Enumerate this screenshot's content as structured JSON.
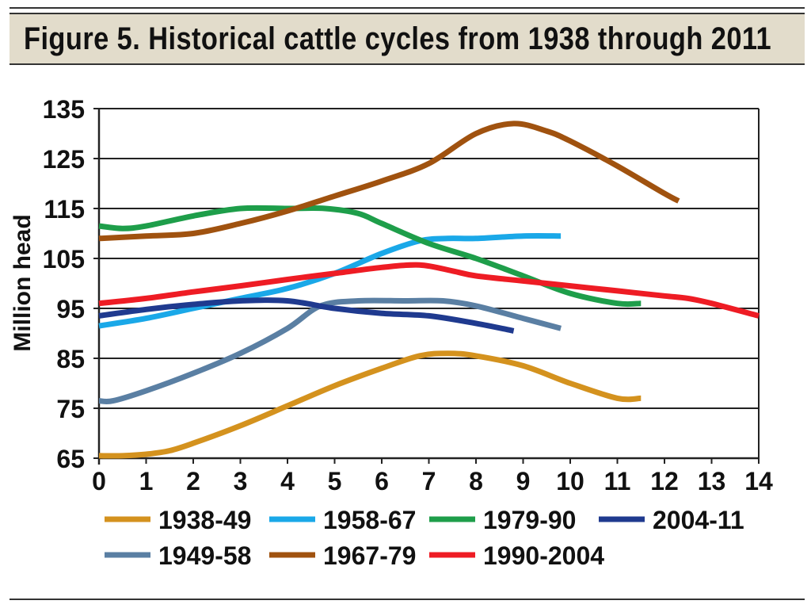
{
  "chart_data": {
    "type": "line",
    "title": "Figure 5. Historical cattle cycles from 1938 through 2011",
    "xlabel": "",
    "ylabel": "Million head",
    "xlim": [
      0,
      14
    ],
    "ylim": [
      65,
      135
    ],
    "xticks": [
      0,
      1,
      2,
      3,
      4,
      5,
      6,
      7,
      8,
      9,
      10,
      11,
      12,
      13,
      14
    ],
    "yticks": [
      65,
      75,
      85,
      95,
      105,
      115,
      125,
      135
    ],
    "grid": "horizontal",
    "legend_position": "bottom",
    "series": [
      {
        "name": "1938-49",
        "color": "#d4921e",
        "x": [
          0,
          0.5,
          1,
          1.5,
          2,
          3,
          4,
          5,
          6,
          6.8,
          7.4,
          8,
          9,
          10,
          11,
          11.5
        ],
        "y": [
          65.5,
          65.5,
          65.8,
          66.5,
          68,
          71.5,
          75.5,
          79.5,
          83,
          85.5,
          86,
          85.5,
          83.5,
          80,
          77,
          77
        ]
      },
      {
        "name": "1949-58",
        "color": "#5a7fa3",
        "x": [
          0,
          0.3,
          1,
          2,
          3,
          4,
          4.7,
          5.5,
          6.5,
          7.3,
          8,
          9,
          9.8
        ],
        "y": [
          76.5,
          76.5,
          78.5,
          82,
          86,
          91,
          95.5,
          96.5,
          96.5,
          96.5,
          95.5,
          93,
          91
        ]
      },
      {
        "name": "1958-67",
        "color": "#1aa8e8",
        "x": [
          0,
          1,
          2,
          3,
          4,
          5,
          6,
          6.8,
          7.4,
          8,
          9,
          9.8
        ],
        "y": [
          91.5,
          93,
          95,
          97,
          99,
          102,
          106,
          108.5,
          109,
          109,
          109.5,
          109.5
        ]
      },
      {
        "name": "1967-79",
        "color": "#a0520f",
        "x": [
          0,
          1,
          2,
          3,
          4,
          5,
          6,
          7,
          8,
          8.8,
          9.5,
          10,
          11,
          12,
          12.3
        ],
        "y": [
          109,
          109.5,
          110,
          112,
          114.5,
          117.5,
          120.5,
          124,
          130,
          132,
          130.5,
          128.5,
          123.5,
          118,
          116.5
        ]
      },
      {
        "name": "1979-90",
        "color": "#1e9e4a",
        "x": [
          0,
          0.5,
          1,
          2,
          3,
          4,
          4.8,
          5.5,
          6,
          7,
          8,
          9,
          10,
          11,
          11.5
        ],
        "y": [
          111.5,
          111,
          111.5,
          113.5,
          115,
          115,
          115,
          114,
          112,
          108,
          105,
          101.5,
          98,
          96,
          96
        ]
      },
      {
        "name": "1990-2004",
        "color": "#ee1c24",
        "x": [
          0,
          1,
          2,
          3,
          4,
          5,
          6,
          6.8,
          7.5,
          8,
          9,
          10,
          11,
          12,
          12.5,
          13,
          14
        ],
        "y": [
          96,
          97,
          98.3,
          99.5,
          100.8,
          102,
          103.2,
          103.7,
          102.5,
          101.5,
          100.5,
          99.5,
          98.5,
          97.5,
          97,
          96,
          93.5
        ]
      },
      {
        "name": "2004-11",
        "color": "#1f3a8f",
        "x": [
          0,
          1,
          2,
          3,
          4,
          5,
          6,
          7,
          8,
          8.8
        ],
        "y": [
          93.5,
          94.8,
          95.8,
          96.5,
          96.5,
          95,
          94,
          93.5,
          92,
          90.5
        ]
      }
    ],
    "legend_rows": [
      [
        "1938-49",
        "1958-67",
        "1979-90",
        "2004-11"
      ],
      [
        "1949-58",
        "1967-79",
        "1990-2004"
      ]
    ]
  }
}
